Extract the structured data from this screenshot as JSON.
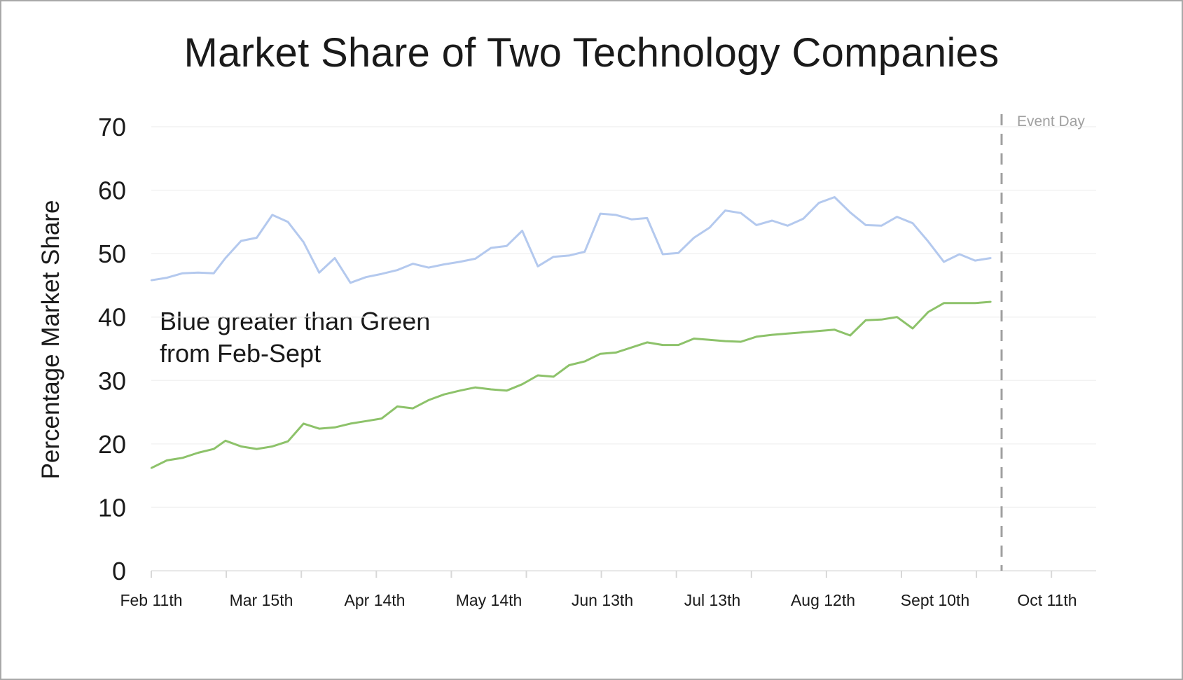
{
  "chart_data": {
    "type": "line",
    "title": "Market Share of Two Technology Companies",
    "xlabel": "",
    "ylabel": "Percentage Market Share",
    "ylim": [
      0,
      70
    ],
    "yticks": [
      "0",
      "10",
      "20",
      "30",
      "40",
      "50",
      "60",
      "70"
    ],
    "xticks": [
      "Feb 11th",
      "Mar 15th",
      "Apr 14th",
      "May 14th",
      "Jun 13th",
      "Jul 13th",
      "Aug 12th",
      "Sept 10th",
      "Oct 11th"
    ],
    "xlim": [
      "Feb 11th",
      "Oct 11th"
    ],
    "grid": true,
    "event_marker": {
      "label": "Event Day",
      "x": "Sept 23rd"
    },
    "annotation": [
      "Blue greater than Green",
      "from Feb-Sept"
    ],
    "colors": {
      "blue": "#b4c9ee",
      "green": "#8dc26a",
      "event": "#a0a0a0",
      "grid": "#f2f2f2"
    },
    "series": [
      {
        "color": "blue",
        "x": [
          "Feb 11th",
          "Feb 15th",
          "Feb 19th",
          "Feb 23rd",
          "Feb 27th",
          "Mar 2nd",
          "Mar 6th",
          "Mar 10th",
          "Mar 14th",
          "Mar 18th",
          "Mar 22nd",
          "Mar 26th",
          "Mar 30th",
          "Apr 3rd",
          "Apr 7th",
          "Apr 11th",
          "Apr 15th",
          "Apr 19th",
          "Apr 23rd",
          "Apr 27th",
          "May 1st",
          "May 5th",
          "May 9th",
          "May 13th",
          "May 17th",
          "May 21st",
          "May 25th",
          "May 29th",
          "Jun 2nd",
          "Jun 6th",
          "Jun 10th",
          "Jun 14th",
          "Jun 18th",
          "Jun 22nd",
          "Jun 26th",
          "Jun 30th",
          "Jul 4th",
          "Jul 8th",
          "Jul 12th",
          "Jul 16th",
          "Jul 20th",
          "Jul 24th",
          "Jul 28th",
          "Aug 1st",
          "Aug 5th",
          "Aug 9th",
          "Aug 13th",
          "Aug 17th",
          "Aug 21st",
          "Aug 25th",
          "Aug 29th",
          "Sept 2nd",
          "Sept 6th",
          "Sept 10th",
          "Sept 14th"
        ],
        "y": [
          45.8,
          46.2,
          46.9,
          47.0,
          46.9,
          49.3,
          52.0,
          52.5,
          56.1,
          55.0,
          51.8,
          47.0,
          49.3,
          45.4,
          46.3,
          46.8,
          47.4,
          48.4,
          47.8,
          48.3,
          48.7,
          49.2,
          50.9,
          51.2,
          53.6,
          48.0,
          49.5,
          49.7,
          50.3,
          56.3,
          56.1,
          55.4,
          55.6,
          49.9,
          50.1,
          52.5,
          54.1,
          56.8,
          56.4,
          54.5,
          55.2,
          54.4,
          55.5,
          58.0,
          58.9,
          56.5,
          54.5,
          54.4,
          55.8,
          54.8,
          51.9,
          48.7,
          49.9,
          48.9,
          49.3
        ]
      },
      {
        "color": "green",
        "x": [
          "Feb 11th",
          "Feb 15th",
          "Feb 19th",
          "Feb 23rd",
          "Feb 27th",
          "Mar 2nd",
          "Mar 6th",
          "Mar 10th",
          "Mar 14th",
          "Mar 18th",
          "Mar 22nd",
          "Mar 26th",
          "Mar 30th",
          "Apr 3rd",
          "Apr 7th",
          "Apr 11th",
          "Apr 15th",
          "Apr 19th",
          "Apr 23rd",
          "Apr 27th",
          "May 1st",
          "May 5th",
          "May 9th",
          "May 13th",
          "May 17th",
          "May 21st",
          "May 25th",
          "May 29th",
          "Jun 2nd",
          "Jun 6th",
          "Jun 10th",
          "Jun 14th",
          "Jun 18th",
          "Jun 22nd",
          "Jun 26th",
          "Jun 30th",
          "Jul 4th",
          "Jul 8th",
          "Jul 12th",
          "Jul 16th",
          "Jul 20th",
          "Jul 24th",
          "Jul 28th",
          "Aug 1st",
          "Aug 5th",
          "Aug 9th",
          "Aug 13th",
          "Aug 17th",
          "Aug 21st",
          "Aug 25th",
          "Aug 29th",
          "Sept 2nd",
          "Sept 6th",
          "Sept 10th",
          "Sept 14th"
        ],
        "y": [
          16.2,
          17.4,
          17.8,
          18.6,
          19.2,
          20.5,
          19.6,
          19.2,
          19.6,
          20.4,
          23.2,
          22.4,
          22.6,
          23.2,
          23.6,
          24.0,
          25.9,
          25.6,
          26.9,
          27.8,
          28.4,
          28.9,
          28.6,
          28.4,
          29.4,
          30.8,
          30.6,
          32.4,
          33.0,
          34.2,
          34.4,
          35.2,
          36.0,
          35.6,
          35.6,
          36.6,
          36.4,
          36.2,
          36.1,
          36.9,
          37.2,
          37.4,
          37.6,
          37.8,
          38.0,
          37.1,
          39.5,
          39.6,
          40.0,
          38.2,
          40.8,
          42.2,
          42.2,
          42.2,
          42.4
        ]
      }
    ]
  }
}
